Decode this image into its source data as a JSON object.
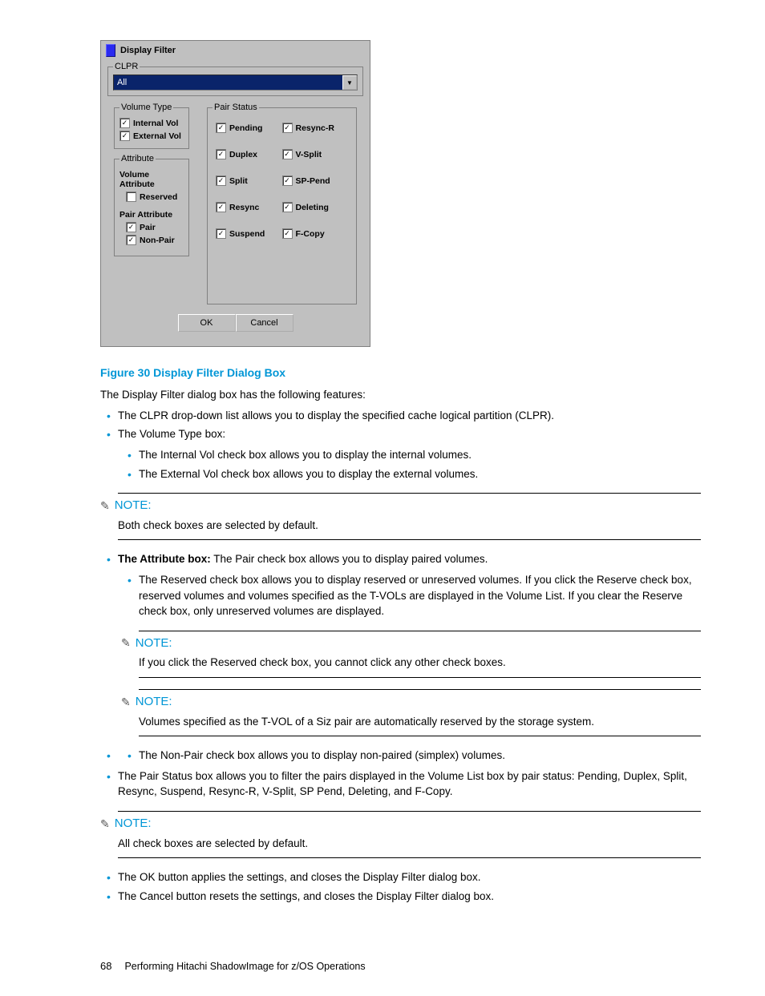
{
  "dialog": {
    "title": "Display Filter",
    "clpr": {
      "legend": "CLPR",
      "value": "All"
    },
    "volumeType": {
      "legend": "Volume Type",
      "items": [
        {
          "label": "Internal Vol",
          "checked": true
        },
        {
          "label": "External Vol",
          "checked": true
        }
      ]
    },
    "attribute": {
      "legend": "Attribute",
      "volAttrLabel": "Volume Attribute",
      "reserved": {
        "label": "Reserved",
        "checked": false
      },
      "pairAttrLabel": "Pair Attribute",
      "pair": {
        "label": "Pair",
        "checked": true
      },
      "nonpair": {
        "label": "Non-Pair",
        "checked": true
      }
    },
    "pairStatus": {
      "legend": "Pair Status",
      "items": [
        {
          "label": "Pending",
          "checked": true
        },
        {
          "label": "Resync-R",
          "checked": true
        },
        {
          "label": "Duplex",
          "checked": true
        },
        {
          "label": "V-Split",
          "checked": true
        },
        {
          "label": "Split",
          "checked": true
        },
        {
          "label": "SP-Pend",
          "checked": true
        },
        {
          "label": "Resync",
          "checked": true
        },
        {
          "label": "Deleting",
          "checked": true
        },
        {
          "label": "Suspend",
          "checked": true
        },
        {
          "label": "F-Copy",
          "checked": true
        }
      ]
    },
    "buttons": {
      "ok": "OK",
      "cancel": "Cancel"
    }
  },
  "doc": {
    "figCaption": "Figure 30 Display Filter Dialog Box",
    "intro": "The Display Filter dialog box has the following features:",
    "b1": "The CLPR drop-down list allows you to display the specified cache logical partition (CLPR).",
    "b2": "The Volume Type box:",
    "b2a": "The Internal Vol check box allows you to display the internal volumes.",
    "b2b": "The External Vol check box allows you to display the external volumes.",
    "noteLabel": "NOTE:",
    "note1": "Both check boxes are selected by default.",
    "b3boldPart": "The Attribute box:",
    "b3rest": "  The Pair check box allows you to display paired volumes.",
    "b3a": "The Reserved check box allows you to display reserved or unreserved volumes. If you click the Reserve check box, reserved volumes and volumes specified as the T-VOLs are displayed in the Volume List. If you clear the Reserve check box, only unreserved volumes are displayed.",
    "note2": "If you click the Reserved check box, you cannot click any other check boxes.",
    "note3": "Volumes specified as the T-VOL of a Siz pair are automatically reserved by the storage system.",
    "b3b": "The Non-Pair check box allows you to display non-paired (simplex) volumes.",
    "b4": "The Pair Status box allows you to filter the pairs displayed in the Volume List box by pair status: Pending, Duplex, Split, Resync, Suspend, Resync-R, V-Split, SP Pend, Deleting, and F-Copy.",
    "note4": "All check boxes are selected by default.",
    "b5": "The OK button applies the settings, and closes the Display Filter dialog box.",
    "b6": "The Cancel button resets the settings, and closes the Display Filter dialog box.",
    "pageNum": "68",
    "footerText": "Performing Hitachi ShadowImage for z/OS Operations"
  },
  "colors": {
    "accent": "#0096d6",
    "dialogBg": "#c0c0c0",
    "dropdownBg": "#0a246a"
  }
}
